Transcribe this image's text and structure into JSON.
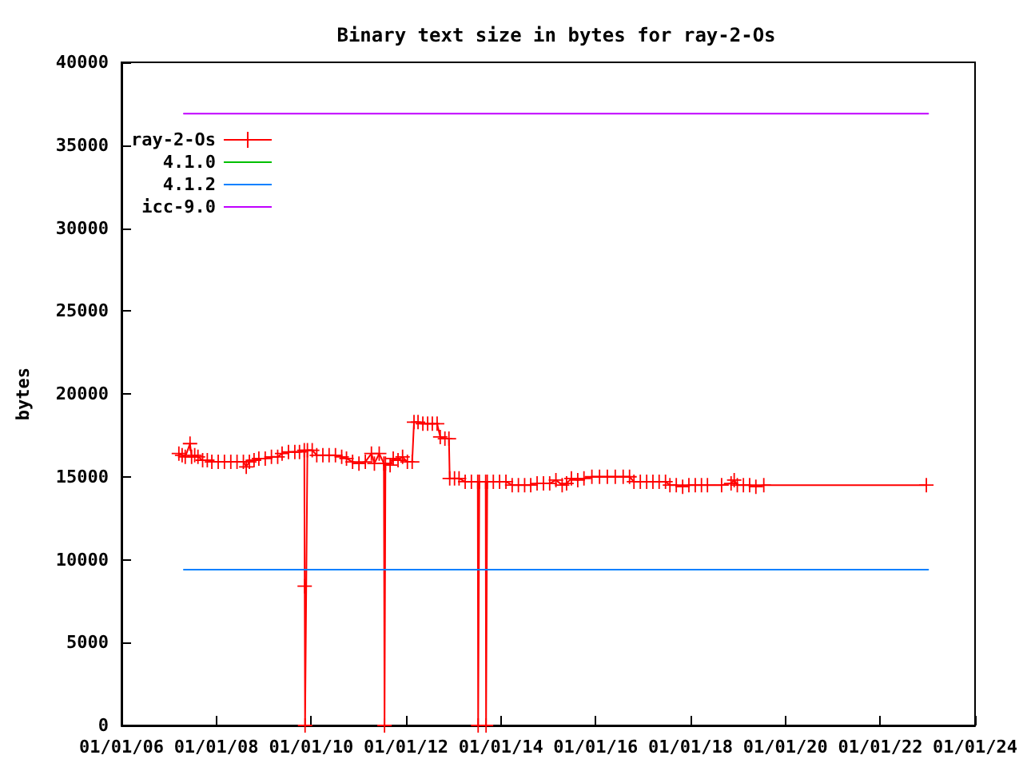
{
  "chart_data": {
    "type": "line",
    "title": "Binary text size in bytes for ray-2-Os",
    "ylabel": "bytes",
    "xlim": [
      "2006-01-01",
      "2024-01-01"
    ],
    "xticks": [
      {
        "value": "2006-01-01",
        "label": "01/01/06"
      },
      {
        "value": "2008-01-01",
        "label": "01/01/08"
      },
      {
        "value": "2010-01-01",
        "label": "01/01/10"
      },
      {
        "value": "2012-01-01",
        "label": "01/01/12"
      },
      {
        "value": "2014-01-01",
        "label": "01/01/14"
      },
      {
        "value": "2016-01-01",
        "label": "01/01/16"
      },
      {
        "value": "2018-01-01",
        "label": "01/01/18"
      },
      {
        "value": "2020-01-01",
        "label": "01/01/20"
      },
      {
        "value": "2022-01-01",
        "label": "01/01/22"
      },
      {
        "value": "2024-01-01",
        "label": "01/01/24"
      }
    ],
    "ylim": [
      0,
      40000
    ],
    "yticks": [
      0,
      5000,
      10000,
      15000,
      20000,
      25000,
      30000,
      35000,
      40000
    ],
    "legend": "top left",
    "series": [
      {
        "name": "ray-2-Os",
        "color": "#ff0000",
        "marker": "cross",
        "x": [
          "2007-03-19",
          "2007-04-13",
          "2007-05-07",
          "2007-06-13",
          "2007-06-25",
          "2007-07-19",
          "2007-08-13",
          "2007-09-18",
          "2007-10-24",
          "2007-11-28",
          "2008-01-16",
          "2008-03-04",
          "2008-04-22",
          "2008-06-09",
          "2008-07-28",
          "2008-08-19",
          "2008-09-12",
          "2008-10-18",
          "2008-11-24",
          "2009-01-12",
          "2009-03-01",
          "2009-04-18",
          "2009-05-22",
          "2009-07-10",
          "2009-08-28",
          "2009-10-03",
          "2009-11-09",
          "2009-11-12",
          "2009-11-15",
          "2009-12-03",
          "2010-01-09",
          "2010-02-13",
          "2010-04-01",
          "2010-05-19",
          "2010-07-07",
          "2010-08-24",
          "2010-09-30",
          "2010-11-16",
          "2011-01-04",
          "2011-02-22",
          "2011-04-10",
          "2011-05-03",
          "2011-06-09",
          "2011-07-15",
          "2011-07-20",
          "2011-07-27",
          "2011-09-01",
          "2011-09-25",
          "2011-11-01",
          "2011-12-06",
          "2012-01-12",
          "2012-02-18",
          "2012-03-03",
          "2012-04-03",
          "2012-05-10",
          "2012-06-16",
          "2012-07-22",
          "2012-08-28",
          "2012-09-21",
          "2012-10-27",
          "2012-11-27",
          "2012-12-03",
          "2013-01-09",
          "2013-02-13",
          "2013-04-01",
          "2013-05-19",
          "2013-07-07",
          "2013-07-10",
          "2013-07-19",
          "2013-09-06",
          "2013-09-09",
          "2013-09-18",
          "2013-11-04",
          "2013-12-22",
          "2014-02-09",
          "2014-03-29",
          "2014-05-16",
          "2014-07-03",
          "2014-08-19",
          "2014-10-07",
          "2014-11-25",
          "2015-01-12",
          "2015-03-01",
          "2015-04-18",
          "2015-05-22",
          "2015-06-28",
          "2015-08-16",
          "2015-10-03",
          "2015-12-03",
          "2016-01-31",
          "2016-03-31",
          "2016-05-31",
          "2016-07-31",
          "2016-09-18",
          "2016-10-22",
          "2016-12-10",
          "2017-01-28",
          "2017-03-17",
          "2017-05-04",
          "2017-06-22",
          "2017-07-26",
          "2017-09-13",
          "2017-11-01",
          "2017-12-19",
          "2018-02-06",
          "2018-03-26",
          "2018-05-11",
          "2018-08-28",
          "2018-11-09",
          "2018-12-03",
          "2018-12-27",
          "2019-02-12",
          "2019-04-01",
          "2019-05-19",
          "2019-07-19",
          "2022-12-22"
        ],
        "values": [
          16400,
          16300,
          16200,
          17000,
          16200,
          16300,
          16200,
          16000,
          16000,
          15900,
          15900,
          15900,
          15900,
          15900,
          15900,
          15600,
          15900,
          16000,
          16100,
          16100,
          16200,
          16200,
          16400,
          16500,
          16500,
          16500,
          16600,
          8400,
          0,
          16600,
          16600,
          16300,
          16300,
          16300,
          16300,
          16200,
          16100,
          15900,
          15800,
          15900,
          16400,
          15800,
          16400,
          15800,
          0,
          15800,
          15700,
          16100,
          16000,
          16200,
          15900,
          15900,
          18300,
          18300,
          18200,
          18200,
          18200,
          18200,
          17400,
          17300,
          17300,
          14900,
          14900,
          14900,
          14700,
          14700,
          14700,
          0,
          14700,
          14700,
          0,
          14700,
          14700,
          14700,
          14700,
          14500,
          14500,
          14500,
          14500,
          14600,
          14600,
          14600,
          14800,
          14500,
          14600,
          14900,
          14800,
          14900,
          15000,
          15000,
          15000,
          15000,
          15000,
          15000,
          14700,
          14700,
          14700,
          14700,
          14700,
          14700,
          14500,
          14500,
          14400,
          14500,
          14500,
          14500,
          14500,
          14500,
          14600,
          14800,
          14500,
          14500,
          14500,
          14400,
          14500,
          14500
        ]
      },
      {
        "name": "4.1.0",
        "color": "#00c000",
        "marker": "none"
      },
      {
        "name": "4.1.2",
        "color": "#0080ff",
        "marker": "none",
        "x": [
          "2007-04-26",
          "2023-01-05"
        ],
        "values": [
          9400,
          9400
        ]
      },
      {
        "name": "icc-9.0",
        "color": "#c000ff",
        "marker": "none",
        "x": [
          "2007-04-26",
          "2023-01-05"
        ],
        "values": [
          36900,
          36900
        ]
      }
    ]
  }
}
